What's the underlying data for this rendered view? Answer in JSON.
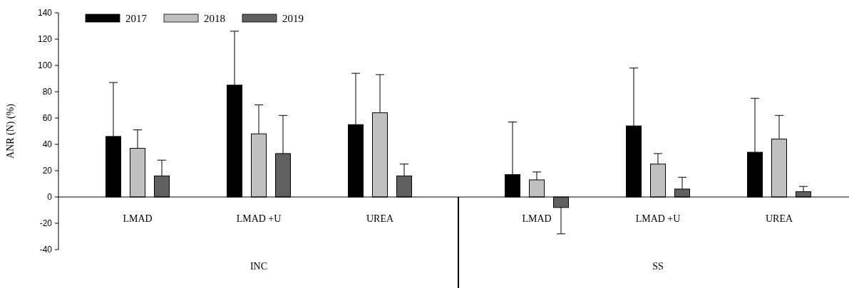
{
  "chart_data": {
    "type": "bar",
    "ylabel": "ANR (N) (%)",
    "categories": [
      "LMAD",
      "LMAD +U",
      "UREA",
      "LMAD",
      "LMAD +U",
      "UREA"
    ],
    "annotations": [
      "INC",
      "SS"
    ],
    "series": [
      {
        "name": "2017",
        "color": "#000000",
        "values": [
          46,
          85,
          55,
          17,
          54,
          34
        ],
        "errors": [
          [
            46,
            87
          ],
          [
            85,
            126
          ],
          [
            55,
            94
          ],
          [
            17,
            57
          ],
          [
            54,
            98
          ],
          [
            34,
            75
          ]
        ]
      },
      {
        "name": "2018",
        "color": "#c0c0c0",
        "values": [
          37,
          48,
          64,
          13,
          25,
          44
        ],
        "errors": [
          [
            37,
            51
          ],
          [
            48,
            70
          ],
          [
            64,
            93
          ],
          [
            13,
            19
          ],
          [
            25,
            33
          ],
          [
            44,
            62
          ]
        ]
      },
      {
        "name": "2019",
        "color": "#606060",
        "values": [
          16,
          33,
          16,
          -8,
          6,
          4
        ],
        "errors": [
          [
            16,
            28
          ],
          [
            33,
            62
          ],
          [
            16,
            25
          ],
          [
            -28,
            -8
          ],
          [
            6,
            15
          ],
          [
            4,
            8
          ]
        ]
      }
    ],
    "ylim": [
      -40,
      140
    ],
    "yticks": [
      -40,
      -20,
      0,
      20,
      40,
      60,
      80,
      100,
      120,
      140
    ],
    "legend": "top left",
    "grid": false
  }
}
